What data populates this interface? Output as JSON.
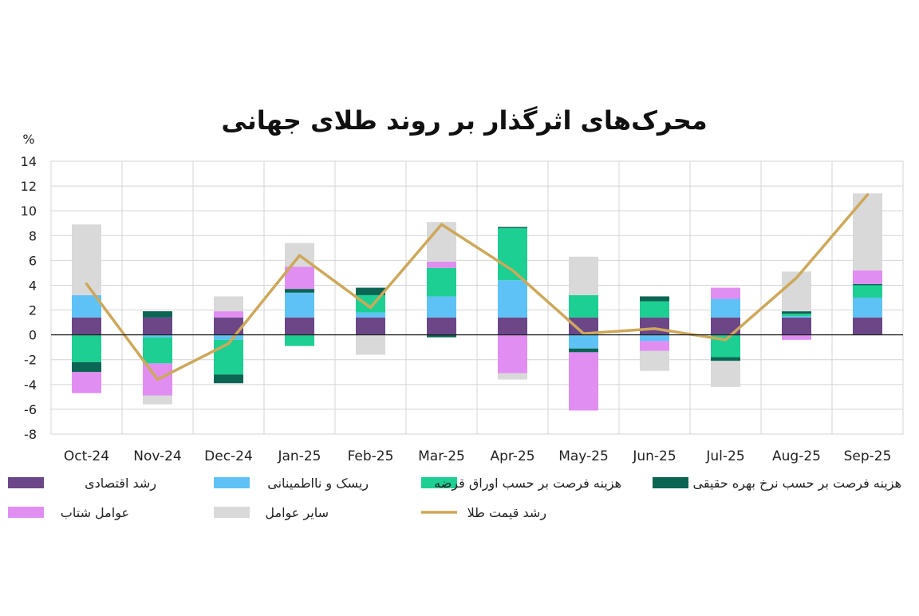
{
  "chart_data": {
    "type": "bar",
    "title": "محرک‌های اثرگذار بر روند طلای جهانی",
    "ylabel": "%",
    "ylim": [
      -8,
      14
    ],
    "yticks": [
      14,
      12,
      10,
      8,
      6,
      4,
      2,
      0,
      -2,
      -4,
      -6,
      -8
    ],
    "grid": true,
    "stacked": true,
    "legend_position": "bottom",
    "categories": [
      "Oct-24",
      "Nov-24",
      "Dec-24",
      "Jan-25",
      "Feb-25",
      "Mar-25",
      "Apr-25",
      "May-25",
      "Jun-25",
      "Jul-25",
      "Aug-25",
      "Sep-25"
    ],
    "series": [
      {
        "name": "رشد اقتصادی",
        "color": "#6b4788",
        "values": [
          1.4,
          1.4,
          1.4,
          1.4,
          1.4,
          1.4,
          1.4,
          1.4,
          1.4,
          1.4,
          1.4,
          1.4
        ]
      },
      {
        "name": "ریسک و نااطمینانی",
        "color": "#5ec2f6",
        "values": [
          1.8,
          -0.2,
          -0.4,
          2.0,
          0.4,
          1.7,
          3.0,
          -1.1,
          -0.5,
          1.5,
          0.1,
          1.6
        ]
      },
      {
        "name": "هزینه فرصت بر حسب اوراق قرضه",
        "color": "#1dcf92",
        "values": [
          -2.2,
          -2.1,
          -2.8,
          -0.9,
          1.4,
          2.3,
          4.2,
          1.8,
          1.3,
          -1.8,
          0.2,
          1.0
        ]
      },
      {
        "name": "هزینه فرصت بر حسب نرخ بهره حقیقی",
        "color": "#0a6553",
        "values": [
          -0.8,
          0.5,
          -0.7,
          0.3,
          0.6,
          -0.2,
          0.1,
          -0.3,
          0.4,
          -0.3,
          0.2,
          0.1
        ]
      },
      {
        "name": "عوامل شتاب",
        "color": "#e08ef2",
        "values": [
          -1.7,
          -2.6,
          0.5,
          1.8,
          0.0,
          0.5,
          -3.1,
          -4.7,
          -0.8,
          0.9,
          -0.4,
          1.1
        ]
      },
      {
        "name": "سایر عوامل",
        "color": "#d9d9d9",
        "values": [
          5.7,
          -0.7,
          1.2,
          1.9,
          -1.6,
          3.2,
          -0.5,
          3.1,
          -1.6,
          -2.1,
          3.2,
          6.2
        ]
      }
    ],
    "line_series": {
      "name": "رشد قیمت طلا",
      "color": "#cda85a",
      "values": [
        4.1,
        -3.6,
        -0.7,
        6.4,
        2.2,
        8.9,
        5.2,
        0.1,
        0.5,
        -0.4,
        4.6,
        11.3
      ]
    }
  }
}
